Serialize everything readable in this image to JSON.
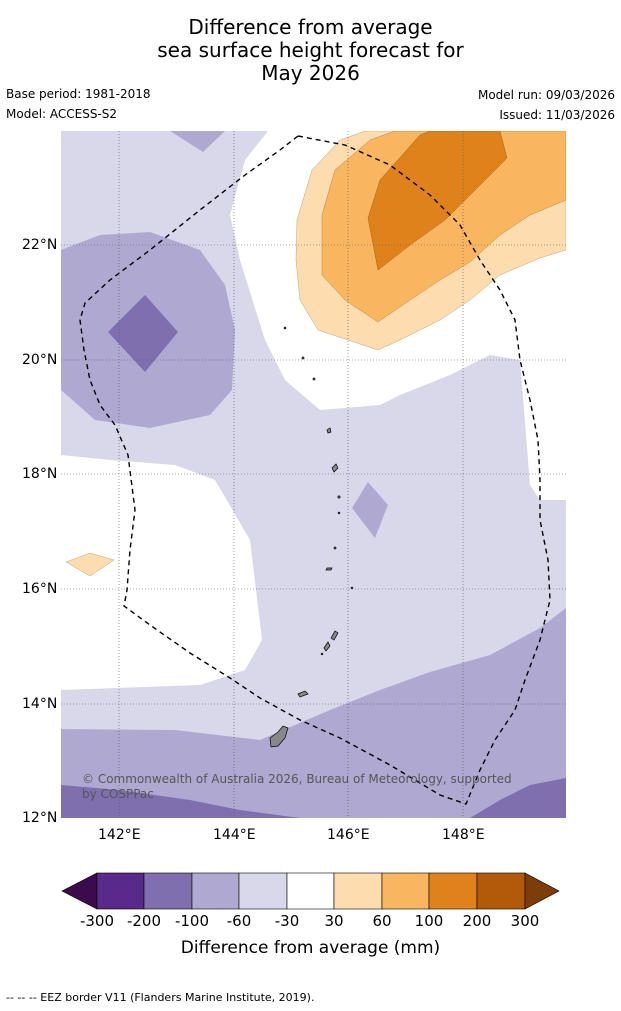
{
  "title": {
    "line1": "Difference from average",
    "line2": "sea surface height forecast for",
    "line3": "May 2026"
  },
  "meta": {
    "base_period": "Base period: 1981-2018",
    "model": "Model: ACCESS-S2",
    "model_run": "Model run: 09/03/2026",
    "issued": "Issued: 11/03/2026"
  },
  "map": {
    "lat_labels": [
      "22°N",
      "20°N",
      "18°N",
      "16°N",
      "14°N",
      "12°N"
    ],
    "lon_labels": [
      "142°E",
      "144°E",
      "146°E",
      "148°E"
    ],
    "copyright": "© Commonwealth of Australia 2026, Bureau of Meteorology, supported by COSPPac",
    "copyright_line1": "© Commonwealth of Australia 2026, Bureau of Meteorology, supported",
    "copyright_line2": "by COSPPac"
  },
  "colorbar": {
    "title": "Difference from average (mm)",
    "labels": [
      "-300",
      "-200",
      "-100",
      "-60",
      "-30",
      "30",
      "60",
      "100",
      "200",
      "300"
    ],
    "colors": {
      "below_min": "#3b0b4d",
      "c1": "#5a2a8a",
      "c2": "#7f6fae",
      "c3": "#afa9d2",
      "c4": "#d8d8ea",
      "c5": "#ffffff",
      "c6": "#fddcb0",
      "c7": "#f9b660",
      "c8": "#e0821c",
      "c9": "#b25a0a",
      "above_max": "#7c3d08"
    }
  },
  "footer": {
    "legend": "-- -- -- EEZ border V11 (Flanders Marine Institute, 2019)."
  }
}
